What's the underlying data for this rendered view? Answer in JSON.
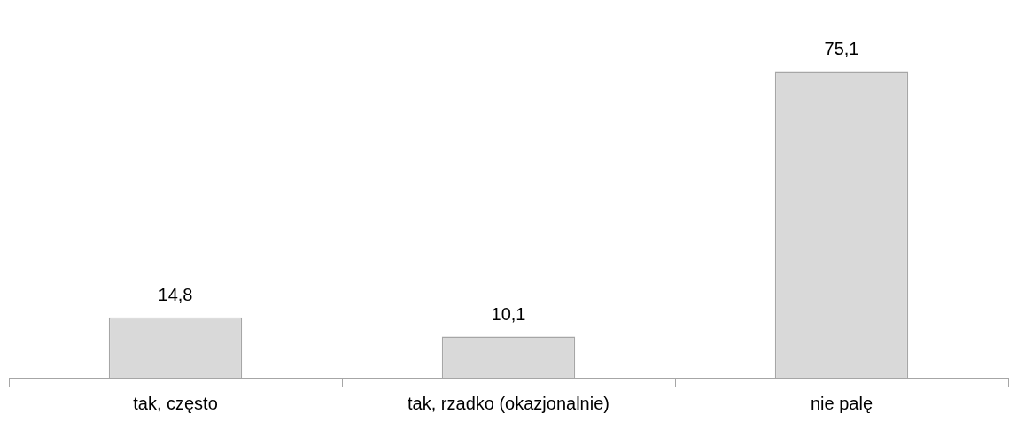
{
  "chart_data": {
    "type": "bar",
    "categories": [
      "tak, często",
      "tak, rzadko (okazjonalnie)",
      "nie palę"
    ],
    "values": [
      14.8,
      10.1,
      75.1
    ],
    "value_labels": [
      "14,8",
      "10,1",
      "75,1"
    ],
    "color": "#d9d9d9"
  }
}
